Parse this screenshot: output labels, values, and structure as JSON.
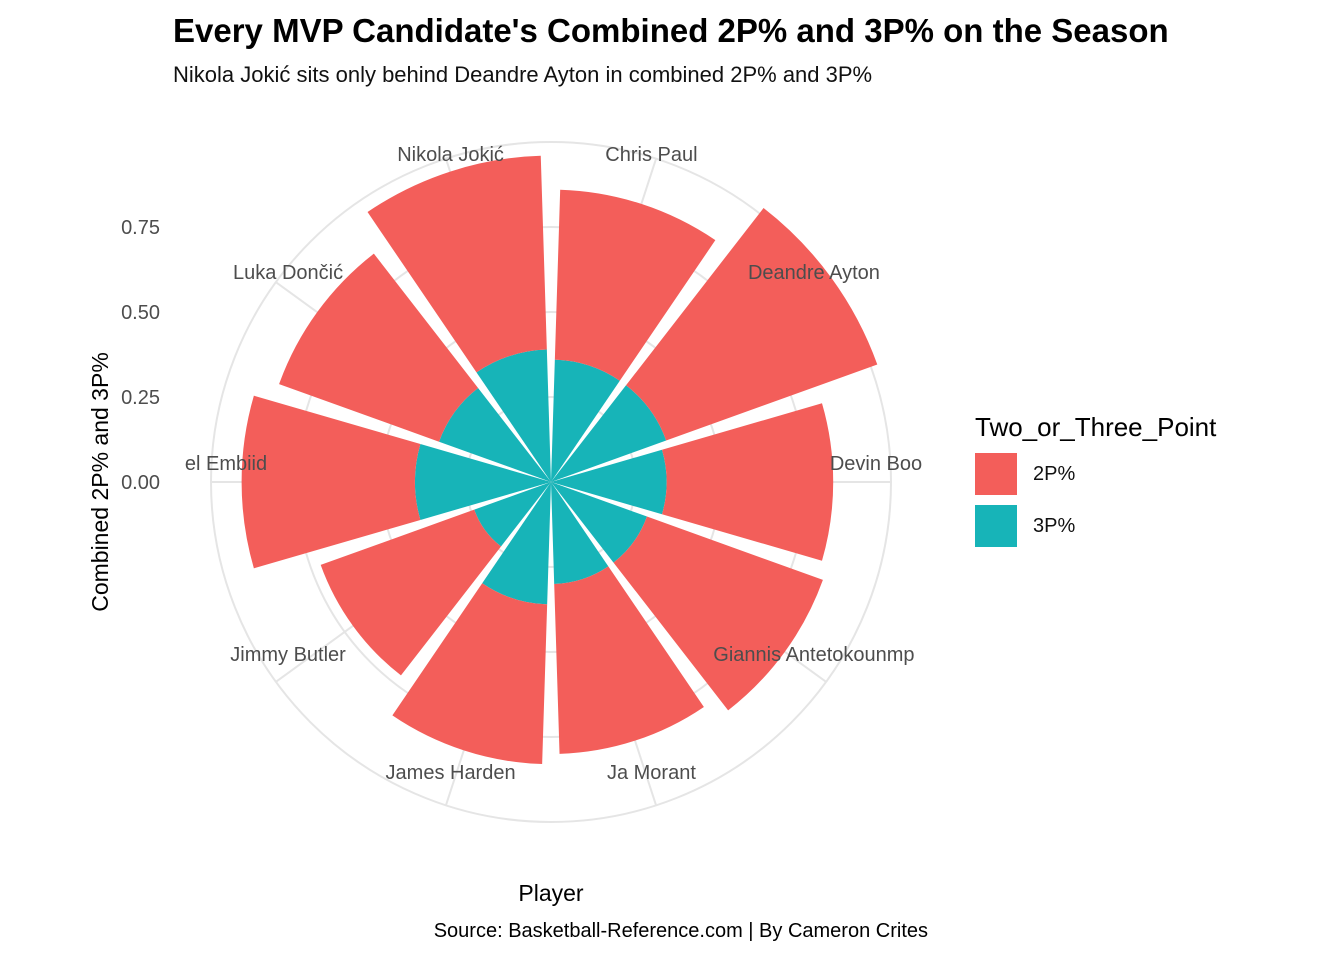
{
  "chart_data": {
    "type": "bar",
    "coord": "polar",
    "title": "Every MVP Candidate's Combined 2P% and 3P% on the Season",
    "subtitle": "Nikola Jokić sits only behind Deandre Ayton in combined 2P% and 3P%",
    "xlabel": "Player",
    "ylabel": "Combined 2P% and 3P%",
    "caption": "Source: Basketball-Reference.com | By Cameron Crites",
    "ylim": [
      0,
      1.0
    ],
    "y_ticks": [
      0.0,
      0.25,
      0.5,
      0.75
    ],
    "y_tick_labels": [
      "0.00",
      "0.25",
      "0.50",
      "0.75"
    ],
    "grid": true,
    "legend_position": "right",
    "legend_title": "Two_or_Three_Point",
    "stacked": true,
    "categories": [
      "Chris Paul",
      "Deandre Ayton",
      "Devin Booker",
      "Giannis Antetokounmpo",
      "Ja Morant",
      "James Harden",
      "Jimmy Butler",
      "Joel Embiid",
      "Luka Dončić",
      "Nikola Jokić"
    ],
    "category_labels": [
      "Chris Paul",
      "Deandre Ayton",
      "Devin Boo",
      "Giannis Antetokounmp",
      "Ja Morant",
      "James Harden",
      "Jimmy Butler",
      "el Embiid",
      "Luka Dončić",
      "Nikola Jokić"
    ],
    "series": [
      {
        "name": "3P%",
        "color": "#17B4B8",
        "values": [
          0.36,
          0.36,
          0.34,
          0.3,
          0.3,
          0.36,
          0.24,
          0.4,
          0.35,
          0.39
        ]
      },
      {
        "name": "2P%",
        "color": "#F35E5A",
        "values": [
          0.5,
          0.66,
          0.49,
          0.55,
          0.5,
          0.47,
          0.48,
          0.51,
          0.5,
          0.57
        ]
      }
    ]
  }
}
